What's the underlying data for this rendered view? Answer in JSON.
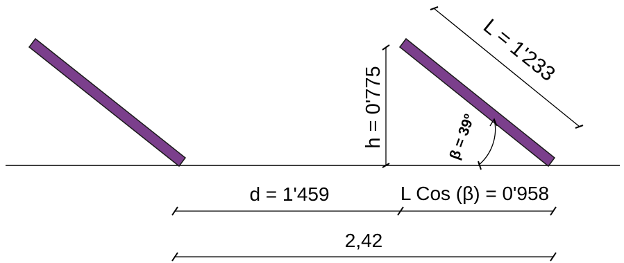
{
  "diagram": {
    "panel_color": "#7B3F8C",
    "panel_stroke": "#1a1a1a",
    "line_color": "#000000",
    "labels": {
      "length": "L = 1'233",
      "height": "h = 0'775",
      "angle": "β = 39º",
      "distance": "d = 1'459",
      "projection": "L Cos (β) = 0'958",
      "total": "2,42"
    }
  }
}
